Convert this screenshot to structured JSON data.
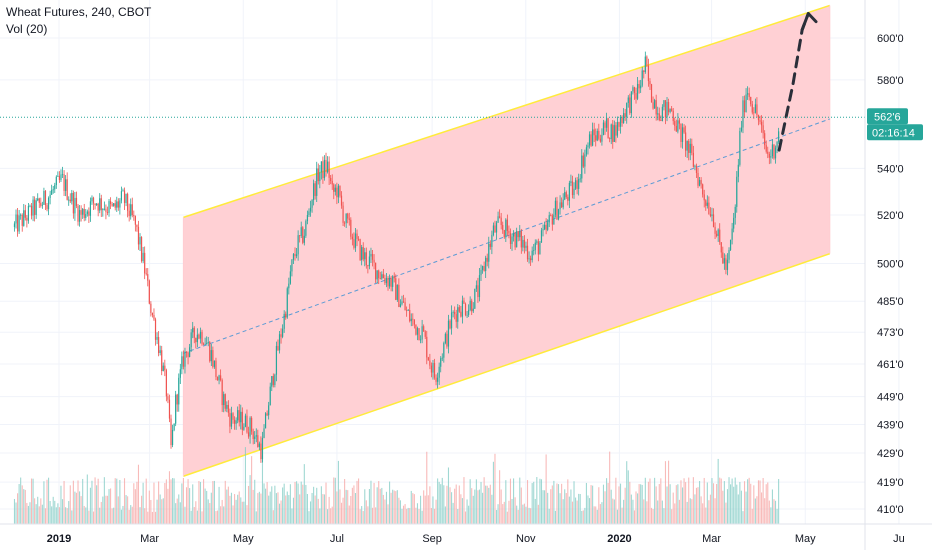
{
  "legend": {
    "symbol_line": "Wheat Futures, 240, CBOT",
    "volume_line": "Vol (20)"
  },
  "chart_data": {
    "type": "candlestick",
    "title": "Wheat Futures, 240, CBOT",
    "subtitle": "Vol (20)",
    "y_scale": "log",
    "ylim": [
      405,
      616
    ],
    "grid": true,
    "price_ticks": [
      {
        "value": 600,
        "label": "600'0"
      },
      {
        "value": 580,
        "label": "580'0"
      },
      {
        "value": 540,
        "label": "540'0"
      },
      {
        "value": 520,
        "label": "520'0"
      },
      {
        "value": 500,
        "label": "500'0"
      },
      {
        "value": 485,
        "label": "485'0"
      },
      {
        "value": 473,
        "label": "473'0"
      },
      {
        "value": 461,
        "label": "461'0"
      },
      {
        "value": 449,
        "label": "449'0"
      },
      {
        "value": 439,
        "label": "439'0"
      },
      {
        "value": 429,
        "label": "429'0"
      },
      {
        "value": 419,
        "label": "419'0"
      },
      {
        "value": 410,
        "label": "410'0"
      }
    ],
    "time_ticks": [
      {
        "date": "2019-01-01",
        "label": "2019",
        "bold": true
      },
      {
        "date": "2019-03-01",
        "label": "Mar",
        "bold": false
      },
      {
        "date": "2019-05-01",
        "label": "May",
        "bold": false
      },
      {
        "date": "2019-07-01",
        "label": "Jul",
        "bold": false
      },
      {
        "date": "2019-09-01",
        "label": "Sep",
        "bold": false
      },
      {
        "date": "2019-11-01",
        "label": "Nov",
        "bold": false
      },
      {
        "date": "2020-01-01",
        "label": "2020",
        "bold": true
      },
      {
        "date": "2020-03-01",
        "label": "Mar",
        "bold": false
      },
      {
        "date": "2020-05-01",
        "label": "May",
        "bold": false
      },
      {
        "date": "2020-07-01",
        "label": "Ju",
        "bold": false
      }
    ],
    "price_path": [
      [
        "2018-12-03",
        515
      ],
      [
        "2018-12-15",
        522
      ],
      [
        "2018-12-24",
        527
      ],
      [
        "2019-01-03",
        535
      ],
      [
        "2019-01-08",
        528
      ],
      [
        "2019-01-15",
        520
      ],
      [
        "2019-01-25",
        526
      ],
      [
        "2019-02-05",
        522
      ],
      [
        "2019-02-12",
        527
      ],
      [
        "2019-02-20",
        515
      ],
      [
        "2019-02-26",
        497
      ],
      [
        "2019-03-02",
        482
      ],
      [
        "2019-03-07",
        468
      ],
      [
        "2019-03-12",
        451
      ],
      [
        "2019-03-15",
        430
      ],
      [
        "2019-03-18",
        447
      ],
      [
        "2019-03-23",
        463
      ],
      [
        "2019-03-31",
        473
      ],
      [
        "2019-04-05",
        472
      ],
      [
        "2019-04-10",
        465
      ],
      [
        "2019-04-14",
        456
      ],
      [
        "2019-04-18",
        448
      ],
      [
        "2019-04-23",
        441
      ],
      [
        "2019-05-01",
        440
      ],
      [
        "2019-05-06",
        438
      ],
      [
        "2019-05-10",
        433
      ],
      [
        "2019-05-13",
        430
      ],
      [
        "2019-05-17",
        445
      ],
      [
        "2019-05-22",
        462
      ],
      [
        "2019-05-28",
        480
      ],
      [
        "2019-06-01",
        497
      ],
      [
        "2019-06-05",
        507
      ],
      [
        "2019-06-10",
        513
      ],
      [
        "2019-06-14",
        526
      ],
      [
        "2019-06-19",
        538
      ],
      [
        "2019-06-25",
        541
      ],
      [
        "2019-06-28",
        529
      ],
      [
        "2019-07-01",
        531
      ],
      [
        "2019-07-06",
        518
      ],
      [
        "2019-07-12",
        510
      ],
      [
        "2019-07-18",
        503
      ],
      [
        "2019-07-22",
        501
      ],
      [
        "2019-07-29",
        496
      ],
      [
        "2019-08-05",
        493
      ],
      [
        "2019-08-10",
        487
      ],
      [
        "2019-08-15",
        481
      ],
      [
        "2019-08-20",
        476
      ],
      [
        "2019-08-26",
        473
      ],
      [
        "2019-08-30",
        463
      ],
      [
        "2019-09-03",
        456
      ],
      [
        "2019-09-06",
        463
      ],
      [
        "2019-09-10",
        470
      ],
      [
        "2019-09-14",
        479
      ],
      [
        "2019-09-19",
        483
      ],
      [
        "2019-09-25",
        483
      ],
      [
        "2019-10-01",
        489
      ],
      [
        "2019-10-06",
        502
      ],
      [
        "2019-10-11",
        513
      ],
      [
        "2019-10-15",
        516
      ],
      [
        "2019-10-22",
        512
      ],
      [
        "2019-10-29",
        509
      ],
      [
        "2019-11-04",
        504
      ],
      [
        "2019-11-09",
        507
      ],
      [
        "2019-11-14",
        513
      ],
      [
        "2019-11-19",
        521
      ],
      [
        "2019-11-24",
        525
      ],
      [
        "2019-11-30",
        530
      ],
      [
        "2019-12-03",
        531
      ],
      [
        "2019-12-08",
        544
      ],
      [
        "2019-12-13",
        553
      ],
      [
        "2019-12-18",
        555
      ],
      [
        "2019-12-23",
        558
      ],
      [
        "2019-12-29",
        556
      ],
      [
        "2020-01-05",
        567
      ],
      [
        "2020-01-13",
        575
      ],
      [
        "2020-01-18",
        587
      ],
      [
        "2020-01-21",
        574
      ],
      [
        "2020-01-27",
        566
      ],
      [
        "2020-02-04",
        566
      ],
      [
        "2020-02-08",
        558
      ],
      [
        "2020-02-14",
        550
      ],
      [
        "2020-02-19",
        541
      ],
      [
        "2020-02-24",
        530
      ],
      [
        "2020-03-02",
        520
      ],
      [
        "2020-03-05",
        510
      ],
      [
        "2020-03-08",
        503
      ],
      [
        "2020-03-11",
        497
      ],
      [
        "2020-03-16",
        520
      ],
      [
        "2020-03-20",
        559
      ],
      [
        "2020-03-24",
        577
      ],
      [
        "2020-03-27",
        570
      ],
      [
        "2020-04-01",
        561
      ],
      [
        "2020-04-04",
        551
      ],
      [
        "2020-04-07",
        545
      ],
      [
        "2020-04-10",
        548
      ],
      [
        "2020-04-14",
        556
      ]
    ],
    "channel": {
      "top_start": [
        "2019-03-23",
        519
      ],
      "top_end": [
        "2020-05-17",
        616
      ],
      "bottom_start": [
        "2019-03-23",
        421
      ],
      "bottom_end": [
        "2020-05-17",
        504
      ],
      "mid_start": [
        "2019-03-23",
        465
      ],
      "mid_end": [
        "2020-05-17",
        562
      ]
    },
    "projection": [
      [
        "2020-04-14",
        548
      ],
      [
        "2020-04-23",
        578
      ],
      [
        "2020-04-29",
        604
      ],
      [
        "2020-05-03",
        612
      ],
      [
        "2020-05-08",
        608
      ]
    ],
    "last_price": {
      "value": 562.75,
      "label": "562'6",
      "countdown": "02:16:14"
    },
    "colors": {
      "up": "#26a69a",
      "down": "#ef5350",
      "up_volume": "#80cbc4",
      "down_volume": "#f5a3a2",
      "channel_fill": "#ffcdd2",
      "channel_border": "#ffeb3b",
      "midline": "#5b9bd5",
      "price_line": "#26a69a",
      "projection": "#2a2e39",
      "grid": "#f0f3fa",
      "axis_text": "#131722"
    }
  }
}
